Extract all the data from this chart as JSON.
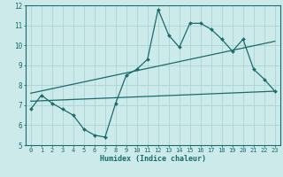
{
  "xlabel": "Humidex (Indice chaleur)",
  "bg_color": "#cceaea",
  "grid_color": "#aad4d4",
  "line_color": "#1a6b6b",
  "xlim": [
    -0.5,
    23.5
  ],
  "ylim": [
    5,
    12
  ],
  "xticks": [
    0,
    1,
    2,
    3,
    4,
    5,
    6,
    7,
    8,
    9,
    10,
    11,
    12,
    13,
    14,
    15,
    16,
    17,
    18,
    19,
    20,
    21,
    22,
    23
  ],
  "yticks": [
    5,
    6,
    7,
    8,
    9,
    10,
    11,
    12
  ],
  "series1_x": [
    0,
    1,
    2,
    3,
    4,
    5,
    6,
    7,
    8,
    9,
    10,
    11,
    12,
    13,
    14,
    15,
    16,
    17,
    18,
    19,
    20,
    21,
    22,
    23
  ],
  "series1_y": [
    6.8,
    7.5,
    7.1,
    6.8,
    6.5,
    5.8,
    5.5,
    5.4,
    7.1,
    8.5,
    8.8,
    9.3,
    11.8,
    10.5,
    9.9,
    11.1,
    11.1,
    10.8,
    10.3,
    9.7,
    10.3,
    8.8,
    8.3,
    7.7
  ],
  "trend1_x": [
    0,
    23
  ],
  "trend1_y": [
    7.2,
    7.7
  ],
  "trend2_x": [
    0,
    23
  ],
  "trend2_y": [
    7.6,
    10.2
  ],
  "marker": "D",
  "marker_size": 2.0,
  "linewidth": 0.9,
  "tick_fontsize": 5.0,
  "xlabel_fontsize": 6.0
}
